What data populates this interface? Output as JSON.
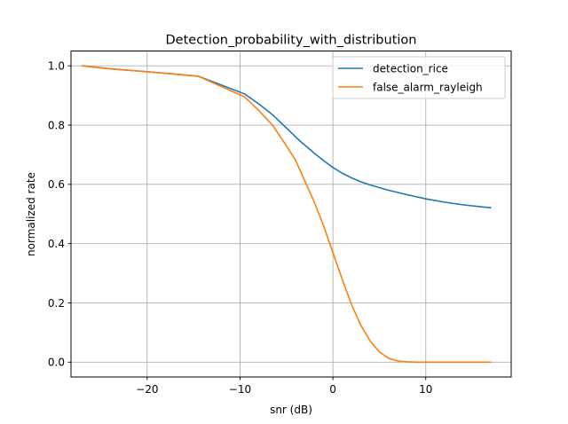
{
  "chart_data": {
    "type": "line",
    "title": "Detection_probability_with_distribution",
    "xlabel": "snr (dB)",
    "ylabel": "normalized rate",
    "xlim": [
      -28.2,
      19.2
    ],
    "ylim": [
      -0.05,
      1.05
    ],
    "xticks": [
      -20,
      -10,
      0,
      10
    ],
    "xtick_labels": [
      "−20",
      "−10",
      "0",
      "10"
    ],
    "yticks": [
      0.0,
      0.2,
      0.4,
      0.6,
      0.8,
      1.0
    ],
    "ytick_labels": [
      "0.0",
      "0.2",
      "0.4",
      "0.6",
      "0.8",
      "1.0"
    ],
    "grid": true,
    "legend_position": "upper right",
    "series": [
      {
        "name": "detection_rice",
        "color": "#1f77b4",
        "x": [
          -27,
          -24,
          -20,
          -17,
          -14.5,
          -12,
          -9.5,
          -8,
          -6.5,
          -5,
          -3.5,
          -2,
          -1,
          0,
          1,
          2,
          3,
          4,
          5,
          6,
          8,
          10,
          12,
          14,
          16,
          17
        ],
        "y": [
          1.0,
          0.99,
          0.98,
          0.972,
          0.965,
          0.935,
          0.905,
          0.872,
          0.835,
          0.79,
          0.745,
          0.705,
          0.68,
          0.657,
          0.638,
          0.622,
          0.609,
          0.598,
          0.589,
          0.58,
          0.565,
          0.551,
          0.54,
          0.531,
          0.524,
          0.521
        ]
      },
      {
        "name": "false_alarm_rayleigh",
        "color": "#ff7f0e",
        "x": [
          -27,
          -24,
          -20,
          -17,
          -14.5,
          -12,
          -9.5,
          -8,
          -6.5,
          -5,
          -4,
          -3,
          -2,
          -1,
          0,
          1,
          2,
          3,
          4,
          5,
          6,
          7,
          8,
          9,
          10,
          12,
          14,
          16,
          17
        ],
        "y": [
          1.0,
          0.99,
          0.98,
          0.972,
          0.965,
          0.93,
          0.895,
          0.85,
          0.8,
          0.73,
          0.68,
          0.61,
          0.54,
          0.46,
          0.37,
          0.28,
          0.195,
          0.125,
          0.072,
          0.035,
          0.013,
          0.004,
          0.001,
          0.0,
          0.0,
          0.0,
          0.0,
          0.0,
          0.0
        ]
      }
    ]
  }
}
